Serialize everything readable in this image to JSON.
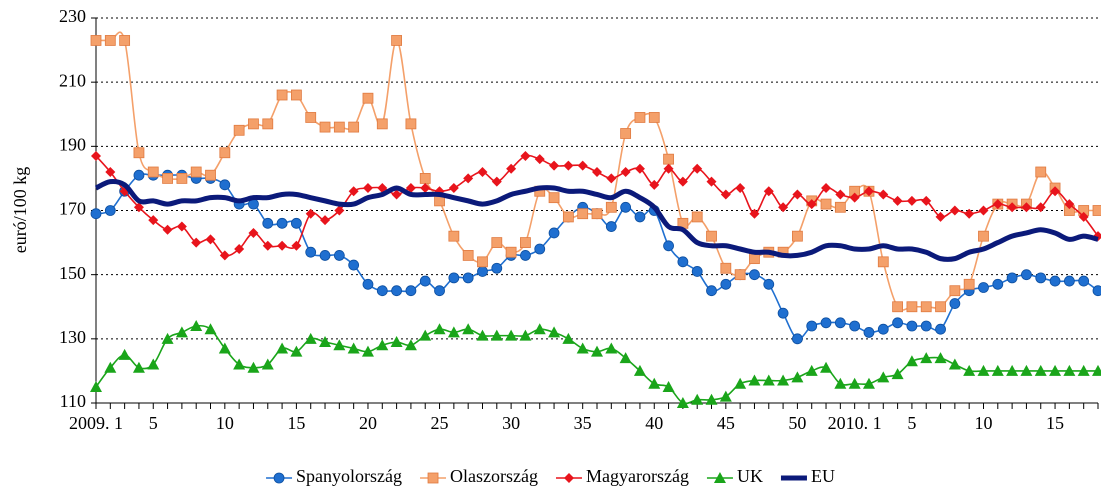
{
  "chart_data": {
    "type": "line",
    "y_label": "euró/100 kg",
    "categories": [
      "2009. 1",
      null,
      null,
      null,
      "5",
      null,
      null,
      null,
      null,
      "10",
      null,
      null,
      null,
      null,
      "15",
      null,
      null,
      null,
      null,
      "20",
      null,
      null,
      null,
      null,
      "25",
      null,
      null,
      null,
      null,
      "30",
      null,
      null,
      null,
      null,
      "35",
      null,
      null,
      null,
      null,
      "40",
      null,
      null,
      null,
      null,
      "45",
      null,
      null,
      null,
      null,
      "50",
      null,
      null,
      null,
      "2010. 1",
      null,
      null,
      null,
      "5",
      null,
      null,
      null,
      null,
      "10",
      null,
      null,
      null,
      null,
      "15",
      null,
      null,
      null
    ],
    "ylim": [
      110,
      230
    ],
    "yticks": [
      110,
      130,
      150,
      170,
      190,
      210,
      230
    ],
    "grid": true,
    "legend": "bottom",
    "series": [
      {
        "name": "Spanyolország",
        "color": "#1f6fd0",
        "marker": "circle",
        "values": [
          169,
          170,
          176,
          181,
          181,
          181,
          181,
          180,
          180,
          178,
          172,
          172,
          166,
          166,
          166,
          157,
          156,
          156,
          153,
          147,
          145,
          145,
          145,
          148,
          145,
          149,
          149,
          151,
          152,
          156,
          156,
          158,
          163,
          168,
          171,
          169,
          165,
          171,
          168,
          170,
          159,
          154,
          151,
          145,
          147,
          150,
          150,
          147,
          138,
          130,
          134,
          135,
          135,
          134,
          132,
          133,
          135,
          134,
          134,
          133,
          141,
          145,
          146,
          147,
          149,
          150,
          149,
          148,
          148,
          148,
          145
        ]
      },
      {
        "name": "Olaszország",
        "color": "#f4a06a",
        "marker": "square",
        "values": [
          223,
          223,
          223,
          188,
          182,
          180,
          180,
          182,
          181,
          188,
          195,
          197,
          197,
          206,
          206,
          199,
          196,
          196,
          196,
          205,
          197,
          223,
          197,
          180,
          173,
          162,
          156,
          154,
          160,
          157,
          160,
          176,
          174,
          168,
          169,
          169,
          171,
          194,
          199,
          199,
          186,
          166,
          168,
          162,
          152,
          150,
          155,
          157,
          157,
          162,
          173,
          172,
          171,
          176,
          176,
          154,
          140,
          140,
          140,
          140,
          145,
          147,
          162,
          172,
          172,
          172,
          182,
          177,
          170,
          170,
          170
        ]
      },
      {
        "name": "Magyarország",
        "color": "#e8141c",
        "marker": "diamond",
        "values": [
          187,
          182,
          176,
          171,
          167,
          164,
          165,
          160,
          161,
          156,
          158,
          163,
          159,
          159,
          159,
          169,
          167,
          170,
          176,
          177,
          177,
          175,
          177,
          177,
          176,
          177,
          180,
          182,
          179,
          183,
          187,
          186,
          184,
          184,
          184,
          182,
          180,
          182,
          183,
          178,
          183,
          179,
          183,
          179,
          175,
          177,
          169,
          176,
          171,
          175,
          172,
          177,
          175,
          174,
          176,
          175,
          173,
          173,
          173,
          168,
          170,
          169,
          170,
          172,
          171,
          171,
          171,
          176,
          172,
          168,
          162
        ]
      },
      {
        "name": "UK",
        "color": "#1aa51a",
        "marker": "triangle",
        "values": [
          115,
          121,
          125,
          121,
          122,
          130,
          132,
          134,
          133,
          127,
          122,
          121,
          122,
          127,
          126,
          130,
          129,
          128,
          127,
          126,
          128,
          129,
          128,
          131,
          133,
          132,
          133,
          131,
          131,
          131,
          131,
          133,
          132,
          130,
          127,
          126,
          127,
          124,
          120,
          116,
          115,
          110,
          111,
          111,
          112,
          116,
          117,
          117,
          117,
          118,
          120,
          121,
          116,
          116,
          116,
          118,
          119,
          123,
          124,
          124,
          122,
          120,
          120,
          120,
          120,
          120,
          120,
          120,
          120,
          120,
          120
        ]
      },
      {
        "name": "EU",
        "color": "#0b1a7a",
        "marker": "none",
        "values": [
          177,
          179,
          178,
          173,
          173,
          172,
          173,
          173,
          174,
          174,
          173,
          174,
          174,
          175,
          175,
          174,
          173,
          172,
          172,
          174,
          175,
          177,
          175,
          175,
          175,
          174,
          173,
          172,
          173,
          175,
          176,
          177,
          177,
          176,
          176,
          175,
          174,
          176,
          174,
          171,
          165,
          164,
          160,
          159,
          159,
          158,
          157,
          157,
          156,
          156,
          157,
          159,
          159,
          158,
          158,
          159,
          158,
          158,
          157,
          155,
          155,
          157,
          158,
          160,
          162,
          163,
          164,
          163,
          161,
          162,
          161
        ]
      }
    ]
  }
}
